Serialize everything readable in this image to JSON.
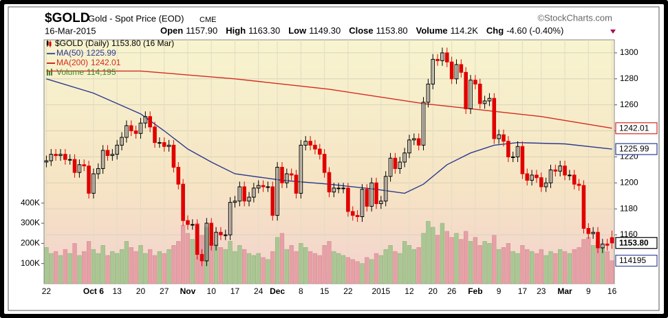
{
  "header": {
    "symbol": "$GOLD",
    "name": "Gold - Spot Price (EOD)",
    "exchange": "CME",
    "brand": "©StockCharts.com",
    "date": "16-Mar-2015",
    "stats": [
      {
        "label": "Open",
        "value": "1157.90"
      },
      {
        "label": "High",
        "value": "1163.30"
      },
      {
        "label": "Low",
        "value": "1149.30"
      },
      {
        "label": "Close",
        "value": "1153.80"
      },
      {
        "label": "Volume",
        "value": "114.2K"
      },
      {
        "label": "Chg",
        "value": "-4.60 (-0.40%)"
      }
    ]
  },
  "chart_data": {
    "type": "candlestick",
    "legend_title": "$GOLD (Daily) 1153.80 (16 Mar)",
    "close_label": "1153.80",
    "up_color": "#000000",
    "down_color": "#e00000",
    "categories": [
      "22",
      null,
      null,
      null,
      null,
      null,
      null,
      null,
      null,
      null,
      "Oct 6",
      null,
      null,
      null,
      null,
      "13",
      null,
      null,
      null,
      null,
      "20",
      null,
      null,
      null,
      null,
      "27",
      null,
      null,
      null,
      null,
      "Nov",
      null,
      null,
      null,
      null,
      "10",
      null,
      null,
      null,
      null,
      "17",
      null,
      null,
      null,
      null,
      "24",
      null,
      null,
      null,
      "Dec",
      null,
      null,
      null,
      null,
      "8",
      null,
      null,
      null,
      null,
      "15",
      null,
      null,
      null,
      null,
      "22",
      null,
      null,
      null,
      null,
      null,
      null,
      "2015",
      null,
      null,
      null,
      null,
      null,
      "12",
      null,
      null,
      null,
      null,
      "20",
      null,
      null,
      null,
      "26",
      null,
      null,
      null,
      null,
      "Feb",
      null,
      null,
      null,
      null,
      "9",
      null,
      null,
      null,
      null,
      "17",
      null,
      null,
      null,
      "23",
      null,
      null,
      null,
      null,
      "Mar",
      null,
      null,
      null,
      null,
      "9",
      null,
      null,
      null,
      null,
      "16"
    ],
    "open": [
      1216,
      1217,
      1222,
      1221,
      1222,
      1218,
      1218,
      1208,
      1214,
      1213,
      1192,
      1207,
      1211,
      1225,
      1221,
      1222,
      1229,
      1235,
      1244,
      1240,
      1238,
      1246,
      1251,
      1243,
      1231,
      1231,
      1228,
      1229,
      1212,
      1199,
      1171,
      1168,
      1168,
      1145,
      1140,
      1169,
      1152,
      1162,
      1160,
      1160,
      1185,
      1186,
      1197,
      1186,
      1189,
      1196,
      1198,
      1197,
      1197,
      1175,
      1212,
      1200,
      1207,
      1206,
      1192,
      1229,
      1232,
      1229,
      1226,
      1222,
      1208,
      1193,
      1196,
      1196,
      1196,
      1178,
      1175,
      1174,
      1195,
      1182,
      1200,
      1184,
      1186,
      1205,
      1219,
      1211,
      1216,
      1223,
      1233,
      1234,
      1229,
      1262,
      1276,
      1295,
      1294,
      1300,
      1293,
      1280,
      1291,
      1285,
      1257,
      1279,
      1276,
      1261,
      1263,
      1265,
      1234,
      1237,
      1232,
      1220,
      1220,
      1228,
      1207,
      1202,
      1206,
      1204,
      1197,
      1200,
      1210,
      1209,
      1213,
      1206,
      1206,
      1199,
      1198,
      1165,
      1161,
      1162,
      1150,
      1153,
      1157.9
    ],
    "high": [
      1221,
      1226,
      1226,
      1226,
      1226,
      1222,
      1222,
      1218,
      1218,
      1217,
      1211,
      1215,
      1229,
      1229,
      1226,
      1233,
      1239,
      1248,
      1248,
      1244,
      1250,
      1255,
      1255,
      1247,
      1235,
      1235,
      1233,
      1233,
      1216,
      1203,
      1175,
      1172,
      1172,
      1149,
      1173,
      1173,
      1166,
      1166,
      1164,
      1189,
      1190,
      1201,
      1201,
      1193,
      1200,
      1202,
      1202,
      1201,
      1201,
      1216,
      1216,
      1211,
      1211,
      1210,
      1233,
      1236,
      1236,
      1233,
      1230,
      1226,
      1212,
      1200,
      1200,
      1200,
      1200,
      1182,
      1179,
      1199,
      1199,
      1204,
      1204,
      1190,
      1209,
      1223,
      1223,
      1220,
      1227,
      1237,
      1238,
      1238,
      1266,
      1280,
      1299,
      1299,
      1304,
      1304,
      1297,
      1295,
      1295,
      1289,
      1283,
      1283,
      1280,
      1267,
      1269,
      1269,
      1241,
      1241,
      1236,
      1224,
      1232,
      1232,
      1211,
      1210,
      1210,
      1208,
      1204,
      1214,
      1214,
      1217,
      1217,
      1210,
      1210,
      1203,
      1202,
      1169,
      1166,
      1166,
      1157,
      1157,
      1163.3
    ],
    "low": [
      1212,
      1213,
      1217,
      1217,
      1214,
      1214,
      1204,
      1204,
      1209,
      1188,
      1188,
      1203,
      1207,
      1217,
      1217,
      1218,
      1225,
      1231,
      1236,
      1234,
      1234,
      1242,
      1239,
      1227,
      1227,
      1224,
      1224,
      1208,
      1195,
      1167,
      1164,
      1164,
      1141,
      1136,
      1136,
      1148,
      1148,
      1156,
      1156,
      1156,
      1181,
      1182,
      1182,
      1182,
      1185,
      1192,
      1193,
      1193,
      1171,
      1171,
      1196,
      1196,
      1202,
      1188,
      1188,
      1225,
      1225,
      1222,
      1218,
      1204,
      1189,
      1189,
      1192,
      1192,
      1174,
      1171,
      1170,
      1170,
      1178,
      1178,
      1180,
      1180,
      1182,
      1201,
      1207,
      1207,
      1212,
      1219,
      1229,
      1225,
      1225,
      1258,
      1272,
      1290,
      1290,
      1289,
      1276,
      1276,
      1281,
      1253,
      1253,
      1272,
      1257,
      1257,
      1259,
      1230,
      1230,
      1228,
      1216,
      1216,
      1216,
      1203,
      1198,
      1198,
      1200,
      1193,
      1193,
      1196,
      1205,
      1205,
      1202,
      1202,
      1195,
      1194,
      1161,
      1157,
      1157,
      1146,
      1146,
      1148,
      1149.3
    ],
    "close": [
      1217,
      1222,
      1221,
      1222,
      1218,
      1218,
      1208,
      1214,
      1213,
      1192,
      1207,
      1211,
      1225,
      1221,
      1222,
      1229,
      1235,
      1244,
      1240,
      1238,
      1246,
      1251,
      1243,
      1231,
      1231,
      1228,
      1229,
      1212,
      1199,
      1171,
      1168,
      1168,
      1145,
      1140,
      1169,
      1152,
      1162,
      1160,
      1160,
      1185,
      1186,
      1197,
      1186,
      1189,
      1196,
      1198,
      1197,
      1197,
      1175,
      1212,
      1200,
      1207,
      1206,
      1192,
      1229,
      1232,
      1229,
      1226,
      1222,
      1208,
      1193,
      1196,
      1196,
      1196,
      1178,
      1175,
      1174,
      1195,
      1182,
      1200,
      1184,
      1186,
      1205,
      1219,
      1211,
      1216,
      1223,
      1233,
      1234,
      1229,
      1262,
      1276,
      1295,
      1294,
      1300,
      1293,
      1280,
      1291,
      1285,
      1257,
      1279,
      1276,
      1261,
      1263,
      1265,
      1234,
      1237,
      1232,
      1220,
      1220,
      1228,
      1207,
      1202,
      1206,
      1204,
      1197,
      1200,
      1210,
      1209,
      1213,
      1206,
      1206,
      1199,
      1198,
      1165,
      1161,
      1162,
      1150,
      1153,
      1152,
      1153.8
    ],
    "ylim": [
      1122.5,
      1310
    ],
    "yticks": [
      1160,
      1180,
      1200,
      1220,
      1240,
      1260,
      1280,
      1300
    ],
    "y2lim": [
      0,
      1211000
    ],
    "y2ticks": [
      {
        "value": 100000,
        "label": "100K"
      },
      {
        "value": 200000,
        "label": "200K"
      },
      {
        "value": 300000,
        "label": "300K"
      },
      {
        "value": 400000,
        "label": "400K"
      }
    ],
    "grid": true,
    "series": [
      {
        "name": "MA(50)",
        "color": "#2b3990",
        "x": [
          0,
          10,
          20,
          25,
          30,
          35,
          40,
          50,
          60,
          70,
          76,
          80,
          85,
          90,
          95,
          100,
          110,
          120
        ],
        "values": [
          1280,
          1269,
          1253,
          1240,
          1226,
          1216,
          1207,
          1202,
          1199,
          1195,
          1192,
          1199,
          1214,
          1223,
          1229,
          1231,
          1230,
          1225.99
        ]
      },
      {
        "name": "MA(200)",
        "color": "#d42a1e",
        "x": [
          0,
          20,
          40,
          60,
          80,
          90,
          105,
          120
        ],
        "values": [
          1286,
          1286,
          1280,
          1272,
          1261,
          1257,
          1251,
          1242.01
        ]
      },
      {
        "name": "Volume",
        "axis": "y2",
        "color": "#3c8a2e",
        "up_color": "#a9c793",
        "down_color": "#e6a0a6",
        "legend_value_label": "114,195",
        "values": [
          180000,
          150000,
          160000,
          140000,
          170000,
          150000,
          200000,
          140000,
          160000,
          210000,
          170000,
          150000,
          190000,
          140000,
          160000,
          150000,
          170000,
          210000,
          180000,
          160000,
          190000,
          150000,
          170000,
          140000,
          160000,
          150000,
          170000,
          190000,
          210000,
          290000,
          250000,
          220000,
          300000,
          240000,
          280000,
          200000,
          190000,
          180000,
          170000,
          210000,
          160000,
          190000,
          170000,
          150000,
          140000,
          150000,
          130000,
          120000,
          160000,
          230000,
          250000,
          170000,
          190000,
          160000,
          200000,
          180000,
          160000,
          150000,
          140000,
          190000,
          210000,
          160000,
          150000,
          140000,
          130000,
          120000,
          110000,
          100000,
          130000,
          120000,
          150000,
          140000,
          170000,
          190000,
          160000,
          150000,
          210000,
          190000,
          170000,
          180000,
          250000,
          310000,
          280000,
          240000,
          300000,
          260000,
          230000,
          250000,
          220000,
          260000,
          210000,
          230000,
          190000,
          210000,
          200000,
          240000,
          170000,
          180000,
          200000,
          160000,
          150000,
          190000,
          170000,
          160000,
          150000,
          170000,
          140000,
          160000,
          150000,
          170000,
          160000,
          150000,
          170000,
          180000,
          220000,
          230000,
          190000,
          210000,
          180000,
          160000,
          114195
        ]
      }
    ]
  }
}
